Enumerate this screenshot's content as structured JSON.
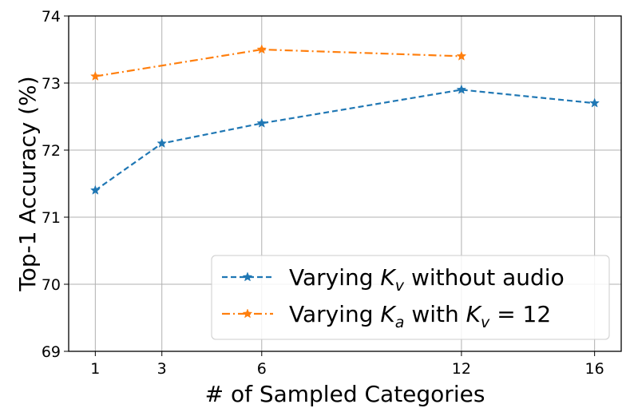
{
  "chart_data": {
    "type": "line",
    "xlabel": "# of Sampled Categories",
    "ylabel": "Top-1 Accuracy (%)",
    "xlim": [
      0.2,
      16.8
    ],
    "ylim": [
      69,
      74
    ],
    "xticks": [
      1,
      3,
      6,
      12,
      16
    ],
    "yticks": [
      69,
      70,
      71,
      72,
      73,
      74
    ],
    "grid": true,
    "legend_position": "lower-right",
    "series": [
      {
        "name_plain": "Varying K",
        "name_subscript": "v",
        "name_suffix": " without audio",
        "color": "#1f77b4",
        "line_style": "dashed",
        "marker": "star",
        "x": [
          1,
          3,
          6,
          12,
          16
        ],
        "y": [
          71.4,
          72.1,
          72.4,
          72.9,
          72.7
        ]
      },
      {
        "name_plain": "Varying K",
        "name_subscript": "a",
        "name_mid": " with K",
        "name_mid_subscript": "v",
        "name_suffix": " = 12",
        "color": "#ff7f0e",
        "line_style": "dashdot",
        "marker": "star",
        "x": [
          1,
          6,
          12
        ],
        "y": [
          73.1,
          73.5,
          73.4
        ]
      }
    ]
  }
}
